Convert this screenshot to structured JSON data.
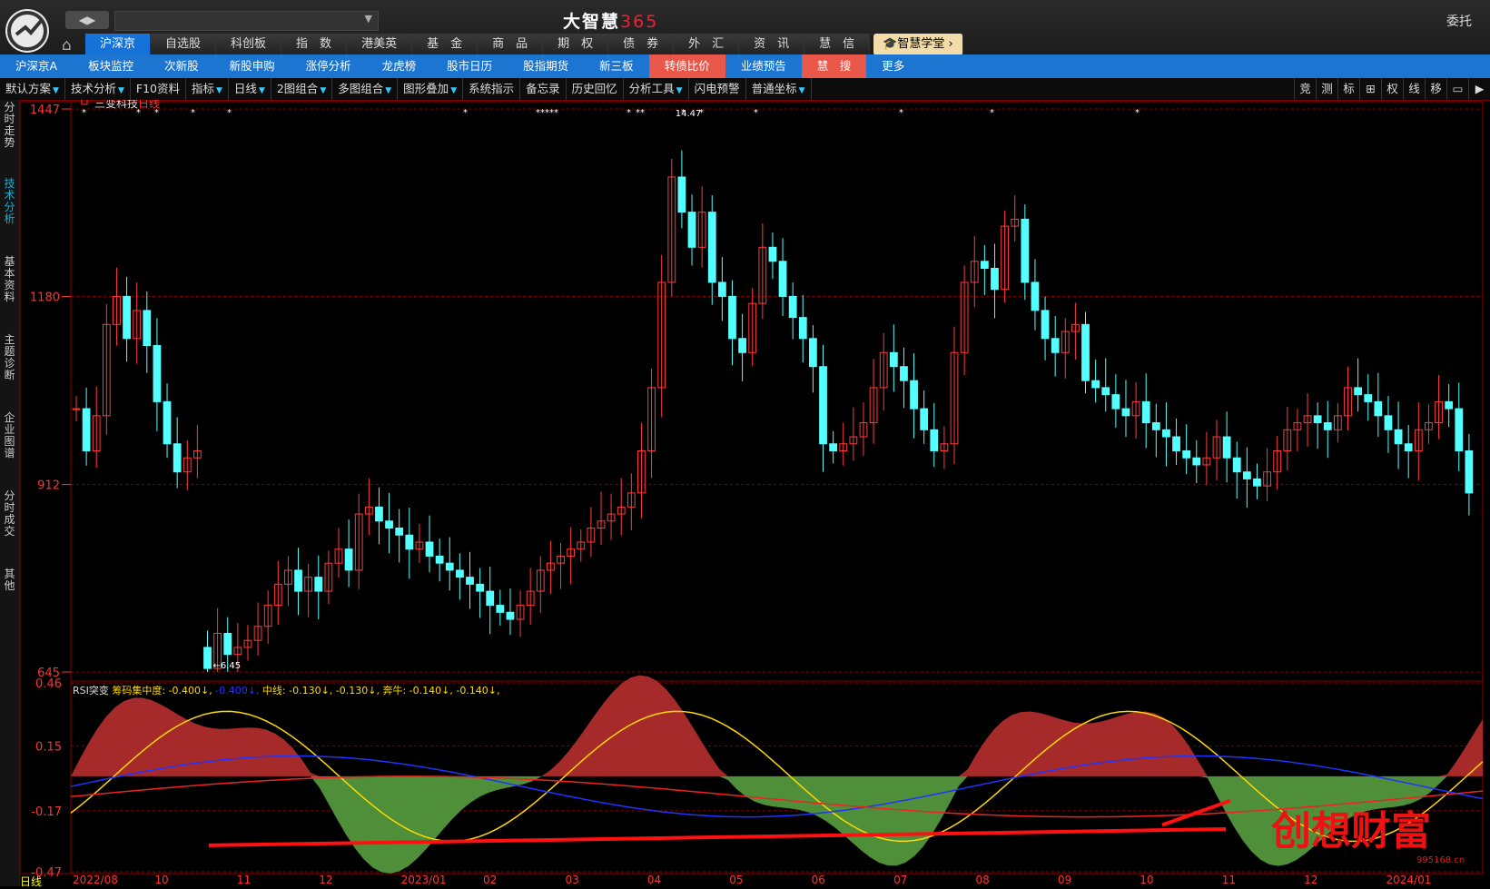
{
  "app": {
    "title_main": "大智慧",
    "title_num": "365",
    "entrust": "委托",
    "back_fwd": "◀▶"
  },
  "nav1": [
    {
      "label": "沪深京",
      "active": true
    },
    {
      "label": "自选股"
    },
    {
      "label": "科创板"
    },
    {
      "label": "指　数"
    },
    {
      "label": "港美英"
    },
    {
      "label": "基　金"
    },
    {
      "label": "商　品"
    },
    {
      "label": "期　权"
    },
    {
      "label": "债　券"
    },
    {
      "label": "外　汇"
    },
    {
      "label": "资　讯"
    },
    {
      "label": "慧　信"
    },
    {
      "label": "🎓智慧学堂 ›",
      "gold": true
    }
  ],
  "nav2": [
    {
      "label": "沪深京A"
    },
    {
      "label": "板块监控"
    },
    {
      "label": "次新股"
    },
    {
      "label": "新股申购"
    },
    {
      "label": "涨停分析"
    },
    {
      "label": "龙虎榜"
    },
    {
      "label": "股市日历"
    },
    {
      "label": "股指期货"
    },
    {
      "label": "新三板"
    },
    {
      "label": "转债比价",
      "hl": true
    },
    {
      "label": "业绩预告"
    },
    {
      "label": "慧　搜",
      "hl": true
    },
    {
      "label": "更多"
    }
  ],
  "toolbar": [
    {
      "label": "默认方案",
      "dd": true
    },
    {
      "label": "技术分析",
      "dd": true
    },
    {
      "label": "F10资料"
    },
    {
      "label": "指标",
      "dd": true
    },
    {
      "label": "日线",
      "dd": true
    },
    {
      "label": "2图组合",
      "dd": true
    },
    {
      "label": "多图组合",
      "dd": true
    },
    {
      "label": "图形叠加",
      "dd": true
    },
    {
      "label": "系统指示"
    },
    {
      "label": "备忘录"
    },
    {
      "label": "历史回忆"
    },
    {
      "label": "分析工具",
      "dd": true
    },
    {
      "label": "闪电预警"
    },
    {
      "label": "普通坐标",
      "dd": true
    }
  ],
  "toolbar_right": [
    "竞",
    "测",
    "标",
    "⊞",
    "权",
    "线",
    "移",
    "▭",
    "▶"
  ],
  "sidetabs": [
    {
      "label": "分时走势"
    },
    {
      "label": "技术分析",
      "active": true
    },
    {
      "label": "基本资料"
    },
    {
      "label": "主题诊断"
    },
    {
      "label": "企业图谱"
    },
    {
      "label": "分时成交"
    },
    {
      "label": "其他"
    }
  ],
  "stock": {
    "name": "三变科技",
    "period": "日线"
  },
  "footer": "日线",
  "watermark": {
    "text": "创想财富",
    "url": "995168.cn"
  },
  "chart_data": [
    {
      "type": "candlestick",
      "y_ticks": [
        "1447",
        "1180",
        "912",
        "645"
      ],
      "ylim": [
        645,
        1447
      ],
      "annotations": [
        {
          "label": "14.47",
          "note": "high marker"
        },
        {
          "label": "6.45",
          "note": "low marker"
        }
      ],
      "close_series": [
        1020,
        960,
        1010,
        1140,
        1180,
        1120,
        1160,
        1110,
        1030,
        970,
        930,
        950,
        960,
        650,
        700,
        670,
        680,
        690,
        710,
        740,
        770,
        790,
        760,
        780,
        760,
        800,
        820,
        790,
        870,
        880,
        860,
        850,
        840,
        820,
        830,
        810,
        800,
        790,
        780,
        770,
        760,
        740,
        730,
        720,
        740,
        760,
        790,
        800,
        810,
        820,
        830,
        850,
        860,
        870,
        880,
        900,
        960,
        1050,
        1200,
        1350,
        1300,
        1250,
        1300,
        1200,
        1180,
        1120,
        1100,
        1170,
        1250,
        1230,
        1180,
        1150,
        1120,
        1080,
        970,
        960,
        970,
        980,
        1000,
        1050,
        1100,
        1080,
        1060,
        1020,
        990,
        960,
        970,
        1100,
        1200,
        1230,
        1220,
        1190,
        1280,
        1290,
        1200,
        1160,
        1120,
        1100,
        1130,
        1140,
        1060,
        1050,
        1040,
        1020,
        1010,
        1030,
        1000,
        990,
        980,
        960,
        950,
        940,
        950,
        980,
        950,
        930,
        920,
        910,
        930,
        960,
        990,
        1000,
        1010,
        1000,
        990,
        1010,
        1050,
        1040,
        1030,
        1010,
        990,
        970,
        960,
        990,
        1000,
        1030,
        1020,
        960,
        900
      ]
    },
    {
      "type": "area",
      "title": "RSI突变",
      "y_ticks": [
        "0.46",
        "0.15",
        "-0.17",
        "-0.47"
      ],
      "ylim": [
        -0.47,
        0.46
      ],
      "series": [
        {
          "name": "筹码集中度",
          "label": "筹码集中度: -0.400↓",
          "value": -0.4,
          "color": "#ffd800"
        },
        {
          "name": "",
          "label": "-0.400↓",
          "value": -0.4,
          "color": "#2233ff"
        },
        {
          "name": "中线",
          "label": "中线: -0.130↓",
          "value": -0.13,
          "color": "#ffd800"
        },
        {
          "name": "",
          "label": "-0.130↓",
          "value": -0.13,
          "color": "#ffd800"
        },
        {
          "name": "奔牛",
          "label": "奔牛: -0.140↓",
          "value": -0.14,
          "color": "#ffd800"
        },
        {
          "name": "",
          "label": "-0.140↓",
          "value": -0.14,
          "color": "#ffd800"
        }
      ]
    }
  ],
  "x_ticks": [
    "2022/08",
    "10",
    "11",
    "12",
    "2023/01",
    "02",
    "03",
    "04",
    "05",
    "06",
    "07",
    "08",
    "09",
    "10",
    "11",
    "12",
    "2024/01"
  ],
  "colors": {
    "up": "#ff3b3b",
    "down": "#54ffff",
    "grid": "#8a0000",
    "accent": "#1b75d1"
  }
}
